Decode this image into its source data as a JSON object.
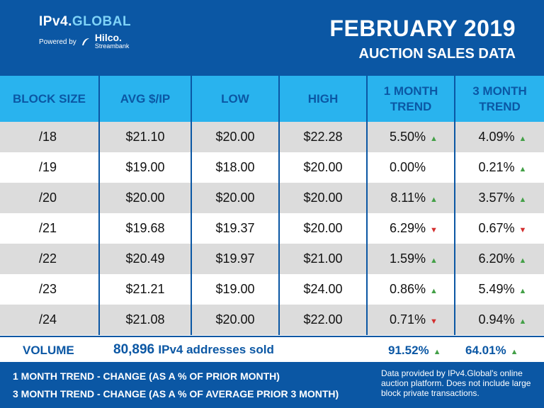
{
  "header": {
    "brand_main": "IPv4.",
    "brand_accent": "GLOBAL",
    "powered_by": "Powered by",
    "partner_name": "Hilco.",
    "partner_sub": "Streambank",
    "title_line1": "FEBRUARY 2019",
    "title_line2": "AUCTION SALES DATA"
  },
  "chart_data": {
    "type": "table",
    "title": "FEBRUARY 2019 AUCTION SALES DATA",
    "columns": [
      "BLOCK SIZE",
      "AVG $/IP",
      "LOW",
      "HIGH",
      "1 MONTH TREND",
      "3 MONTH TREND"
    ],
    "rows": [
      {
        "block": "/18",
        "avg": "$21.10",
        "low": "$20.00",
        "high": "$22.28",
        "m1": "5.50%",
        "m1_dir": "up",
        "m3": "4.09%",
        "m3_dir": "up"
      },
      {
        "block": "/19",
        "avg": "$19.00",
        "low": "$18.00",
        "high": "$20.00",
        "m1": "0.00%",
        "m1_dir": "none",
        "m3": "0.21%",
        "m3_dir": "up"
      },
      {
        "block": "/20",
        "avg": "$20.00",
        "low": "$20.00",
        "high": "$20.00",
        "m1": "8.11%",
        "m1_dir": "up",
        "m3": "3.57%",
        "m3_dir": "up"
      },
      {
        "block": "/21",
        "avg": "$19.68",
        "low": "$19.37",
        "high": "$20.00",
        "m1": "6.29%",
        "m1_dir": "down",
        "m3": "0.67%",
        "m3_dir": "down"
      },
      {
        "block": "/22",
        "avg": "$20.49",
        "low": "$19.97",
        "high": "$21.00",
        "m1": "1.59%",
        "m1_dir": "up",
        "m3": "6.20%",
        "m3_dir": "up"
      },
      {
        "block": "/23",
        "avg": "$21.21",
        "low": "$19.00",
        "high": "$24.00",
        "m1": "0.86%",
        "m1_dir": "up",
        "m3": "5.49%",
        "m3_dir": "up"
      },
      {
        "block": "/24",
        "avg": "$21.08",
        "low": "$20.00",
        "high": "$22.00",
        "m1": "0.71%",
        "m1_dir": "down",
        "m3": "0.94%",
        "m3_dir": "up"
      }
    ],
    "volume": {
      "label": "VOLUME",
      "count": "80,896",
      "count_suffix": "IPv4 addresses sold",
      "m1": "91.52%",
      "m1_dir": "up",
      "m3": "64.01%",
      "m3_dir": "up"
    }
  },
  "colors": {
    "header_blue": "#0b57a4",
    "header_row_cyan": "#29b3ee",
    "row_gray": "#dcdcdc",
    "up": "#43a047",
    "down": "#d32f2f"
  },
  "footer": {
    "def1": "1 MONTH TREND - CHANGE (AS A % OF PRIOR MONTH)",
    "def2": "3 MONTH TREND - CHANGE (AS A % OF AVERAGE PRIOR 3 MONTH)",
    "note": "Data provided by IPv4.Global's online auction platform. Does not include large block private transactions."
  }
}
